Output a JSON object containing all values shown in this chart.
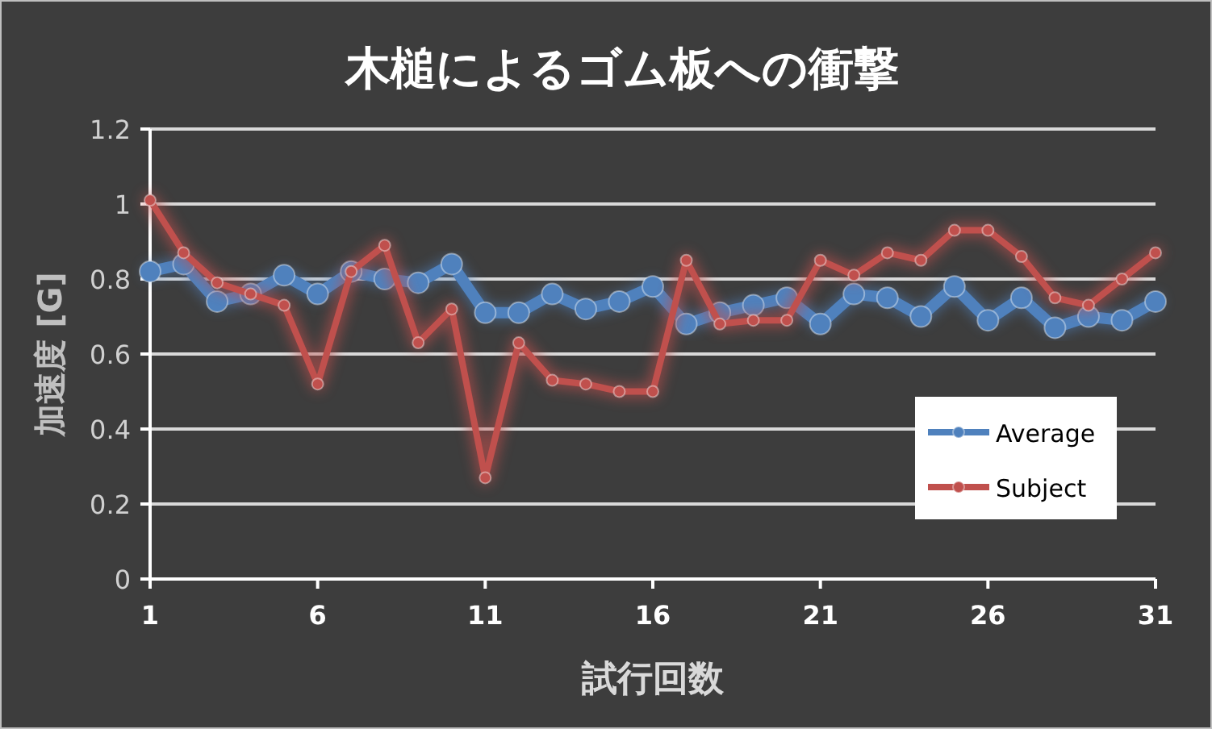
{
  "chart_data": {
    "type": "line",
    "title": "木槌によるゴム板への衝撃",
    "xlabel": "試行回数",
    "ylabel": "加速度 [G]",
    "x": [
      1,
      2,
      3,
      4,
      5,
      6,
      7,
      8,
      9,
      10,
      11,
      12,
      13,
      14,
      15,
      16,
      17,
      18,
      19,
      20,
      21,
      22,
      23,
      24,
      25,
      26,
      27,
      28,
      29,
      30,
      31
    ],
    "xlim": [
      1,
      31
    ],
    "xticks": [
      1,
      6,
      11,
      16,
      21,
      26,
      31
    ],
    "ylim": [
      0,
      1.2
    ],
    "yticks": [
      0,
      0.2,
      0.4,
      0.6,
      0.8,
      1,
      1.2
    ],
    "grid": "y",
    "legend": "right",
    "marker": "circle",
    "series": [
      {
        "name": "Average",
        "color": "#4f81bd",
        "values": [
          0.82,
          0.84,
          0.74,
          0.76,
          0.81,
          0.76,
          0.82,
          0.8,
          0.79,
          0.84,
          0.71,
          0.71,
          0.76,
          0.72,
          0.74,
          0.78,
          0.68,
          0.71,
          0.73,
          0.75,
          0.68,
          0.76,
          0.75,
          0.7,
          0.78,
          0.69,
          0.75,
          0.67,
          0.7,
          0.69,
          0.74
        ]
      },
      {
        "name": "Subject",
        "color": "#c0504d",
        "values": [
          1.01,
          0.87,
          0.79,
          0.76,
          0.73,
          0.52,
          0.82,
          0.89,
          0.63,
          0.72,
          0.27,
          0.63,
          0.53,
          0.52,
          0.5,
          0.5,
          0.85,
          0.68,
          0.69,
          0.69,
          0.85,
          0.81,
          0.87,
          0.85,
          0.93,
          0.93,
          0.86,
          0.75,
          0.73,
          0.8,
          0.87
        ]
      }
    ]
  }
}
